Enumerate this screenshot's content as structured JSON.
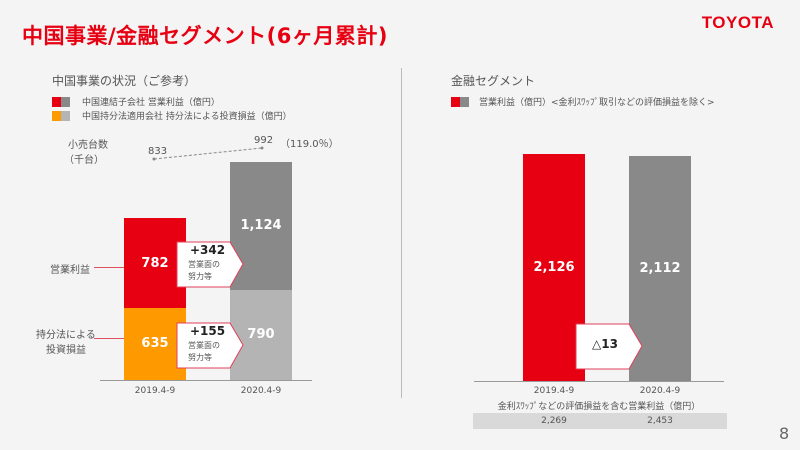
{
  "title": "中国事業/金融セグメント(6ヶ月累計)",
  "logo": "TOYOTA",
  "page_number": "8",
  "colors": {
    "red": "#e60012",
    "dark_gray": "#898989",
    "orange": "#ff9900",
    "light_gray": "#b4b4b4"
  },
  "left": {
    "heading": "中国事業の状況（ご参考）",
    "legend": [
      {
        "label": "中国連結子会社 営業利益（億円）",
        "colors": [
          "#e60012",
          "#898989"
        ]
      },
      {
        "label": "中国持分法適用会社 持分法による投資損益（億円）",
        "colors": [
          "#ff9900",
          "#b4b4b4"
        ]
      }
    ],
    "retail_label_1": "小売台数",
    "retail_label_2": "（千台）",
    "retail_2019": "833",
    "retail_2020": "992",
    "retail_ratio": "（119.0％）",
    "row_label_op": "営業利益",
    "row_label_eq_1": "持分法による",
    "row_label_eq_2": "投資損益",
    "categories": [
      "2019.4-9",
      "2020.4-9"
    ],
    "operating_income": [
      782,
      1124
    ],
    "equity_income": [
      635,
      790
    ],
    "operating_income_labels": [
      "782",
      "1,124"
    ],
    "equity_income_labels": [
      "635",
      "790"
    ],
    "callout_op": {
      "value": "+342",
      "line1": "営業面の",
      "line2": "努力等"
    },
    "callout_eq": {
      "value": "+155",
      "line1": "営業面の",
      "line2": "努力等"
    }
  },
  "right": {
    "heading": "金融セグメント",
    "legend": {
      "label": "営業利益（億円）<金利ｽﾜｯﾌﾟ取引などの評価損益を除く>",
      "colors": [
        "#e60012",
        "#898989"
      ]
    },
    "categories": [
      "2019.4-9",
      "2020.4-9"
    ],
    "values": [
      2126,
      2112
    ],
    "value_labels": [
      "2,126",
      "2,112"
    ],
    "callout": "△13",
    "footer_label": "金利ｽﾜｯﾌﾟなどの評価損益を含む営業利益（億円）",
    "footer_values": [
      "2,269",
      "2,453"
    ]
  }
}
